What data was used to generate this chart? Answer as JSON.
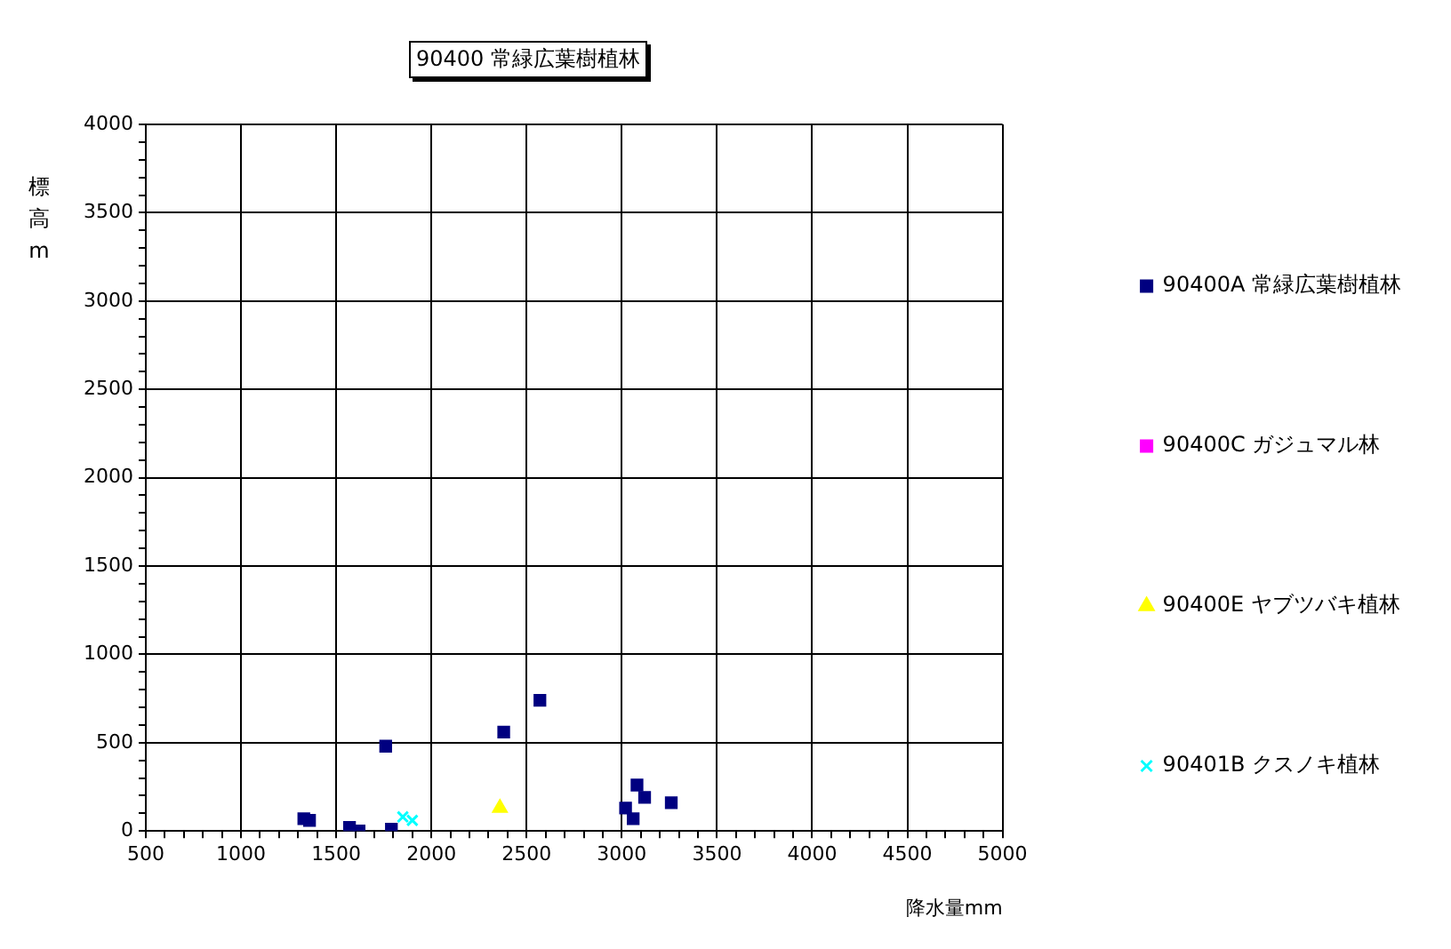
{
  "chart_data": {
    "type": "scatter",
    "title": "90400 常緑広葉樹植林",
    "xlabel": "降水量mm",
    "ylabel": "標高m",
    "xlim": [
      500,
      5000
    ],
    "ylim": [
      0,
      4000
    ],
    "xticks": [
      500,
      {
        "value": 600,
        "label": null
      },
      {
        "value": 700,
        "label": null
      },
      {
        "value": 800,
        "label": null
      },
      {
        "value": 900,
        "label": null
      },
      1000,
      {
        "value": 1100,
        "label": null
      },
      {
        "value": 1200,
        "label": null
      },
      {
        "value": 1300,
        "label": null
      },
      {
        "value": 1400,
        "label": null
      },
      1500,
      {
        "value": 1600,
        "label": null
      },
      {
        "value": 1700,
        "label": null
      },
      {
        "value": 1800,
        "label": null
      },
      {
        "value": 1900,
        "label": null
      },
      2000,
      {
        "value": 2100,
        "label": null
      },
      {
        "value": 2200,
        "label": null
      },
      {
        "value": 2300,
        "label": null
      },
      {
        "value": 2400,
        "label": null
      },
      2500,
      {
        "value": 2600,
        "label": null
      },
      {
        "value": 2700,
        "label": null
      },
      {
        "value": 2800,
        "label": null
      },
      {
        "value": 2900,
        "label": null
      },
      3000,
      {
        "value": 3100,
        "label": null
      },
      {
        "value": 3200,
        "label": null
      },
      {
        "value": 3300,
        "label": null
      },
      {
        "value": 3400,
        "label": null
      },
      3500,
      {
        "value": 3600,
        "label": null
      },
      {
        "value": 3700,
        "label": null
      },
      {
        "value": 3800,
        "label": null
      },
      {
        "value": 3900,
        "label": null
      },
      4000,
      {
        "value": 4100,
        "label": null
      },
      {
        "value": 4200,
        "label": null
      },
      {
        "value": 4300,
        "label": null
      },
      {
        "value": 4400,
        "label": null
      },
      4500,
      {
        "value": 4600,
        "label": null
      },
      {
        "value": 4700,
        "label": null
      },
      {
        "value": 4800,
        "label": null
      },
      {
        "value": 4900,
        "label": null
      },
      5000
    ],
    "yticks": [
      0,
      {
        "value": 100,
        "label": null
      },
      {
        "value": 200,
        "label": null
      },
      {
        "value": 300,
        "label": null
      },
      {
        "value": 400,
        "label": null
      },
      500,
      {
        "value": 600,
        "label": null
      },
      {
        "value": 700,
        "label": null
      },
      {
        "value": 800,
        "label": null
      },
      {
        "value": 900,
        "label": null
      },
      1000,
      {
        "value": 1100,
        "label": null
      },
      {
        "value": 1200,
        "label": null
      },
      {
        "value": 1300,
        "label": null
      },
      {
        "value": 1400,
        "label": null
      },
      1500,
      {
        "value": 1600,
        "label": null
      },
      {
        "value": 1700,
        "label": null
      },
      {
        "value": 1800,
        "label": null
      },
      {
        "value": 1900,
        "label": null
      },
      2000,
      {
        "value": 2100,
        "label": null
      },
      {
        "value": 2200,
        "label": null
      },
      {
        "value": 2300,
        "label": null
      },
      {
        "value": 2400,
        "label": null
      },
      2500,
      {
        "value": 2600,
        "label": null
      },
      {
        "value": 2700,
        "label": null
      },
      {
        "value": 2800,
        "label": null
      },
      {
        "value": 2900,
        "label": null
      },
      3000,
      {
        "value": 3100,
        "label": null
      },
      {
        "value": 3200,
        "label": null
      },
      {
        "value": 3300,
        "label": null
      },
      {
        "value": 3400,
        "label": null
      },
      3500,
      {
        "value": 3600,
        "label": null
      },
      {
        "value": 3700,
        "label": null
      },
      {
        "value": 3800,
        "label": null
      },
      {
        "value": 3900,
        "label": null
      },
      4000
    ],
    "grid": true,
    "legend": "right",
    "series": [
      {
        "name": "90400A 常緑広葉樹植林",
        "color": "#000080",
        "marker": "square",
        "x": [
          1330,
          1360,
          1570,
          1620,
          1760,
          1790,
          2380,
          2570,
          3020,
          3080,
          3120,
          3060,
          3260
        ],
        "values": [
          70,
          60,
          20,
          0,
          480,
          10,
          560,
          740,
          130,
          260,
          190,
          70,
          160
        ]
      },
      {
        "name": "90400C ガジュマル林",
        "color": "#ff00ff",
        "marker": "square"
      },
      {
        "name": "90400E ヤブツバキ植林",
        "color": "#ffff00",
        "marker": "triangle",
        "x": [
          2360
        ],
        "values": [
          130
        ]
      },
      {
        "name": "90401B クスノキ植林",
        "color": "#00ffff",
        "marker": "cross",
        "x": [
          1850,
          1900
        ],
        "values": [
          80,
          60
        ]
      }
    ]
  }
}
